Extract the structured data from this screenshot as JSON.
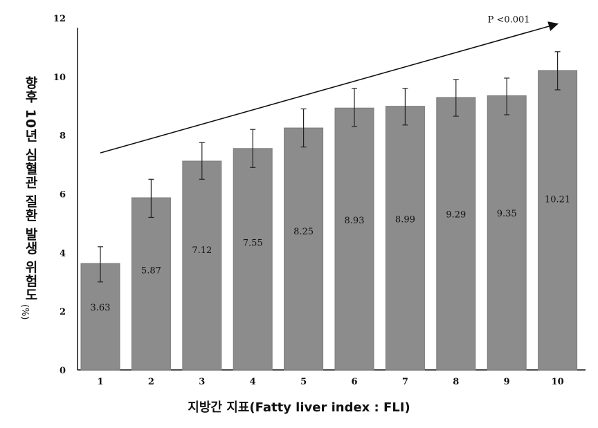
{
  "chart_data": {
    "type": "bar",
    "categories": [
      "1",
      "2",
      "3",
      "4",
      "5",
      "6",
      "7",
      "8",
      "9",
      "10"
    ],
    "values": [
      3.63,
      5.87,
      7.12,
      7.55,
      8.25,
      8.93,
      8.99,
      9.29,
      9.35,
      10.21
    ],
    "data_labels": [
      "3.63",
      "5.87",
      "7.12",
      "7.55",
      "8.25",
      "8.93",
      "8.99",
      "9.29",
      "9.35",
      "10.21"
    ],
    "error_low": [
      3.0,
      5.2,
      6.5,
      6.9,
      7.6,
      8.3,
      8.35,
      8.65,
      8.7,
      9.55
    ],
    "error_high": [
      4.2,
      6.5,
      7.75,
      8.2,
      8.9,
      9.6,
      9.6,
      9.9,
      9.95,
      10.85
    ],
    "yticks": [
      "0",
      "2",
      "4",
      "6",
      "8",
      "10",
      "12"
    ],
    "ylim": [
      0,
      12
    ],
    "ylabel": "향후 10년 심혈관 질환 발생 위험도",
    "ylabel_unit": "(%)",
    "xlabel": "지방간 지표(Fatty liver index : FLI)",
    "annotation": "P <0.001",
    "trend_arrow": {
      "from": {
        "x": "1",
        "y": 7.4
      },
      "to": {
        "x": "10",
        "y": 11.8
      }
    },
    "grid": false,
    "colors": {
      "bar": "#8c8c8c",
      "text": "#111111"
    }
  }
}
